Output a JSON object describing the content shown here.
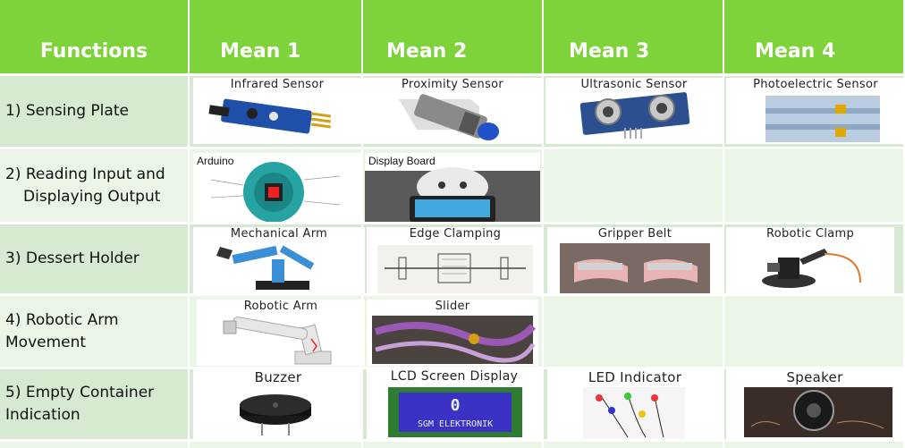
{
  "header": {
    "functions": "Functions",
    "mean1": "Mean 1",
    "mean2": "Mean 2",
    "mean3": "Mean 3",
    "mean4": "Mean 4"
  },
  "rows": [
    {
      "function": "1) Sensing Plate",
      "means": [
        "Infrared Sensor",
        "Proximity Sensor",
        "Ultrasonic Sensor",
        "Photoelectric Sensor"
      ]
    },
    {
      "function_line1": "2) Reading  Input and",
      "function_line2": "Displaying Output",
      "means": [
        "Arduino",
        "Display Board"
      ]
    },
    {
      "function": "3) Dessert Holder",
      "means": [
        "Mechanical Arm",
        "Edge Clamping",
        "Gripper Belt",
        "Robotic Clamp"
      ]
    },
    {
      "function_line1": "4) Robotic Arm",
      "function_line2": "Movement",
      "means": [
        "Robotic Arm",
        "Slider"
      ]
    },
    {
      "function_line1": "5) Empty Container",
      "function_line2": "Indication",
      "means": [
        "Buzzer",
        "LCD Screen Display",
        "LED Indicator",
        "Speaker"
      ],
      "lcd_text_line1": "0",
      "lcd_text_line2": "SGM ELEKTRONIK"
    }
  ],
  "colors": {
    "header_bg": "#7ed23a",
    "row_dark": "#d5ead0",
    "row_light": "#eaf5e6"
  }
}
